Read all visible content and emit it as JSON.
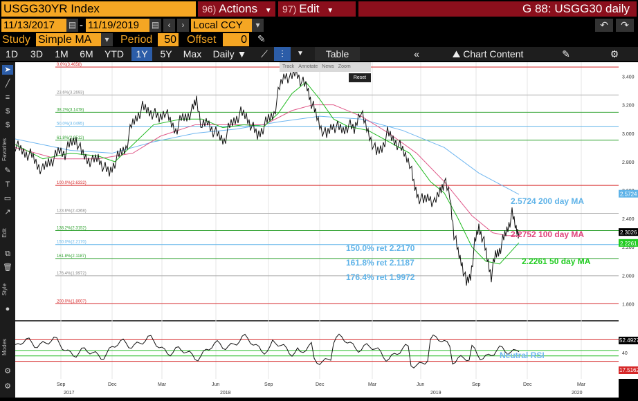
{
  "header": {
    "ticker": "USGG30YR Index",
    "actions_num": "96)",
    "actions_label": "Actions",
    "edit_num": "97)",
    "edit_label": "Edit",
    "screen_title": "G 88: USGG30 daily"
  },
  "range": {
    "start_date": "11/13/2017",
    "separator": "-",
    "end_date": "11/19/2019",
    "currency": "Local CCY"
  },
  "study": {
    "label": "Study",
    "value": "Simple MA",
    "period_label": "Period",
    "period_value": "50",
    "offset_label": "Offset",
    "offset_value": "0"
  },
  "toolbar": {
    "periods": [
      "1D",
      "3D",
      "1M",
      "6M",
      "YTD",
      "1Y",
      "5Y",
      "Max"
    ],
    "active_period": "1Y",
    "frequency": "Daily ▼",
    "table_label": "Table",
    "chart_content_label": "Chart Content"
  },
  "mini_toolbar": {
    "items": [
      "Track",
      "Annotate",
      "News",
      "Zoom"
    ],
    "reset": "Reset"
  },
  "left_labels": [
    "Favorites",
    "Edit",
    "Style",
    "Modes"
  ],
  "chart_data": {
    "type": "line",
    "ylim": [
      1.7,
      3.5
    ],
    "y_ticks": [
      "3.400",
      "3.200",
      "3.000",
      "2.800",
      "2.600",
      "2.400",
      "2.200",
      "2.000",
      "1.800"
    ],
    "x_month_labels": [
      "Sep",
      "Dec",
      "Mar",
      "Jun",
      "Sep",
      "Dec",
      "Mar",
      "Jun",
      "Sep",
      "Dec",
      "Mar"
    ],
    "x_year_labels": [
      "2017",
      "2018",
      "2019",
      "2020"
    ],
    "fib_levels": [
      {
        "label": "0.0%(3.4658)",
        "value": 3.4658,
        "color": "#d62728"
      },
      {
        "label": "23.6%(3.2693)",
        "value": 3.2693,
        "color": "#aaaaaa"
      },
      {
        "label": "38.2%(3.1478)",
        "value": 3.1478,
        "color": "#2ca02c"
      },
      {
        "label": "50.0%(3.0495)",
        "value": 3.0495,
        "color": "#5fb3e8"
      },
      {
        "label": "61.8%(2.9512)",
        "value": 2.9512,
        "color": "#2ca02c"
      },
      {
        "label": "100.0%(2.6332)",
        "value": 2.6332,
        "color": "#d62728"
      },
      {
        "label": "123.6%(2.4368)",
        "value": 2.4368,
        "color": "#aaaaaa"
      },
      {
        "label": "138.2%(2.3152)",
        "value": 2.3152,
        "color": "#2ca02c"
      },
      {
        "label": "150.0%(2.2170)",
        "value": 2.217,
        "color": "#5fb3e8"
      },
      {
        "label": "161.8%(2.1187)",
        "value": 2.1187,
        "color": "#2ca02c"
      },
      {
        "label": "176.4%(1.9972)",
        "value": 1.9972,
        "color": "#aaaaaa"
      },
      {
        "label": "200.0%(1.8007)",
        "value": 1.8007,
        "color": "#d62728"
      }
    ],
    "annotations": [
      {
        "text": "2.5724 200 day MA",
        "color": "#5fb3e8"
      },
      {
        "text": "2.2752 100 day MA",
        "color": "#e0407a"
      },
      {
        "text": "2.2261  50 day  MA",
        "color": "#22cc22"
      },
      {
        "text": "150.0% ret 2.2170",
        "color": "#5fb3e8"
      },
      {
        "text": "161.8% ret 2.1187",
        "color": "#5fb3e8"
      },
      {
        "text": "176.4% ret 1.9972",
        "color": "#5fb3e8"
      }
    ],
    "last_value_tags": [
      {
        "text": "2.5724",
        "value": 2.5724,
        "color": "#5fb3e8"
      },
      {
        "text": "2.3026",
        "value": 2.3026,
        "color": "#000000"
      },
      {
        "text": "2.2261",
        "value": 2.2261,
        "color": "#22cc22"
      }
    ],
    "price": [
      [
        0,
        2.92
      ],
      [
        8,
        2.88
      ],
      [
        16,
        2.86
      ],
      [
        24,
        2.84
      ],
      [
        32,
        2.78
      ],
      [
        40,
        2.74
      ],
      [
        48,
        2.8
      ],
      [
        56,
        2.82
      ],
      [
        64,
        2.88
      ],
      [
        72,
        2.86
      ],
      [
        80,
        2.93
      ],
      [
        88,
        2.96
      ],
      [
        96,
        2.86
      ],
      [
        104,
        2.82
      ],
      [
        112,
        2.8
      ],
      [
        120,
        2.83
      ],
      [
        128,
        2.76
      ],
      [
        136,
        2.72
      ],
      [
        144,
        2.8
      ],
      [
        152,
        2.86
      ],
      [
        160,
        2.9
      ],
      [
        168,
        3.05
      ],
      [
        176,
        3.12
      ],
      [
        184,
        3.18
      ],
      [
        192,
        3.16
      ],
      [
        200,
        3.14
      ],
      [
        208,
        3.1
      ],
      [
        216,
        3.16
      ],
      [
        224,
        3.08
      ],
      [
        232,
        3.02
      ],
      [
        240,
        3.1
      ],
      [
        248,
        3.12
      ],
      [
        256,
        3.16
      ],
      [
        262,
        3.24
      ],
      [
        270,
        3.04
      ],
      [
        278,
        3.08
      ],
      [
        286,
        3.02
      ],
      [
        294,
        2.98
      ],
      [
        302,
        2.95
      ],
      [
        310,
        3.05
      ],
      [
        318,
        3.1
      ],
      [
        326,
        3.14
      ],
      [
        334,
        3.12
      ],
      [
        342,
        3.05
      ],
      [
        350,
        2.98
      ],
      [
        358,
        3.04
      ],
      [
        366,
        3.1
      ],
      [
        374,
        3.14
      ],
      [
        382,
        3.32
      ],
      [
        390,
        3.42
      ],
      [
        398,
        3.38
      ],
      [
        406,
        3.44
      ],
      [
        414,
        3.36
      ],
      [
        422,
        3.32
      ],
      [
        428,
        3.22
      ],
      [
        434,
        3.14
      ],
      [
        442,
        3.04
      ],
      [
        450,
        2.98
      ],
      [
        458,
        3.06
      ],
      [
        466,
        3.04
      ],
      [
        474,
        3.02
      ],
      [
        482,
        3.06
      ],
      [
        490,
        3.02
      ],
      [
        498,
        3.16
      ],
      [
        506,
        3.06
      ],
      [
        514,
        2.96
      ],
      [
        522,
        2.86
      ],
      [
        530,
        2.9
      ],
      [
        538,
        3.0
      ],
      [
        546,
        2.96
      ],
      [
        554,
        2.92
      ],
      [
        562,
        2.86
      ],
      [
        570,
        2.8
      ],
      [
        576,
        2.64
      ],
      [
        582,
        2.56
      ],
      [
        590,
        2.52
      ],
      [
        598,
        2.56
      ],
      [
        606,
        2.5
      ],
      [
        614,
        2.6
      ],
      [
        620,
        2.66
      ],
      [
        628,
        2.56
      ],
      [
        634,
        2.3
      ],
      [
        640,
        2.16
      ],
      [
        646,
        2.08
      ],
      [
        652,
        1.94
      ],
      [
        658,
        2.0
      ],
      [
        664,
        2.22
      ],
      [
        670,
        2.34
      ],
      [
        676,
        2.26
      ],
      [
        682,
        2.12
      ],
      [
        688,
        2.0
      ],
      [
        694,
        2.14
      ],
      [
        700,
        2.18
      ],
      [
        706,
        2.26
      ],
      [
        712,
        2.34
      ],
      [
        718,
        2.43
      ],
      [
        724,
        2.33
      ],
      [
        728,
        2.3
      ]
    ],
    "ma50": [
      [
        0,
        2.92
      ],
      [
        40,
        2.82
      ],
      [
        80,
        2.86
      ],
      [
        120,
        2.84
      ],
      [
        144,
        2.8
      ],
      [
        170,
        2.92
      ],
      [
        200,
        3.06
      ],
      [
        240,
        3.1
      ],
      [
        270,
        3.1
      ],
      [
        300,
        3.04
      ],
      [
        330,
        3.06
      ],
      [
        360,
        3.05
      ],
      [
        380,
        3.14
      ],
      [
        400,
        3.28
      ],
      [
        420,
        3.36
      ],
      [
        440,
        3.24
      ],
      [
        460,
        3.1
      ],
      [
        480,
        3.05
      ],
      [
        510,
        3.02
      ],
      [
        540,
        2.94
      ],
      [
        570,
        2.86
      ],
      [
        600,
        2.66
      ],
      [
        620,
        2.58
      ],
      [
        640,
        2.4
      ],
      [
        660,
        2.2
      ],
      [
        680,
        2.1
      ],
      [
        700,
        2.08
      ],
      [
        715,
        2.16
      ],
      [
        728,
        2.23
      ]
    ],
    "ma100": [
      [
        0,
        2.9
      ],
      [
        60,
        2.82
      ],
      [
        120,
        2.82
      ],
      [
        170,
        2.86
      ],
      [
        210,
        2.98
      ],
      [
        260,
        3.06
      ],
      [
        310,
        3.06
      ],
      [
        360,
        3.06
      ],
      [
        400,
        3.16
      ],
      [
        430,
        3.2
      ],
      [
        460,
        3.2
      ],
      [
        500,
        3.12
      ],
      [
        540,
        3.0
      ],
      [
        580,
        2.86
      ],
      [
        620,
        2.66
      ],
      [
        660,
        2.42
      ],
      [
        690,
        2.3
      ],
      [
        710,
        2.28
      ],
      [
        728,
        2.28
      ]
    ],
    "ma200": [
      [
        0,
        2.96
      ],
      [
        80,
        2.88
      ],
      [
        140,
        2.86
      ],
      [
        200,
        2.94
      ],
      [
        260,
        3.0
      ],
      [
        320,
        3.03
      ],
      [
        380,
        3.08
      ],
      [
        440,
        3.12
      ],
      [
        500,
        3.1
      ],
      [
        560,
        3.02
      ],
      [
        620,
        2.9
      ],
      [
        670,
        2.72
      ],
      [
        728,
        2.57
      ]
    ],
    "rsi": {
      "value_tag": "52.4927",
      "low_tag": "17.5162",
      "neutral_label": "Neutral RSI",
      "tick_label": "40",
      "levels": [
        70,
        50,
        40,
        30
      ]
    }
  }
}
